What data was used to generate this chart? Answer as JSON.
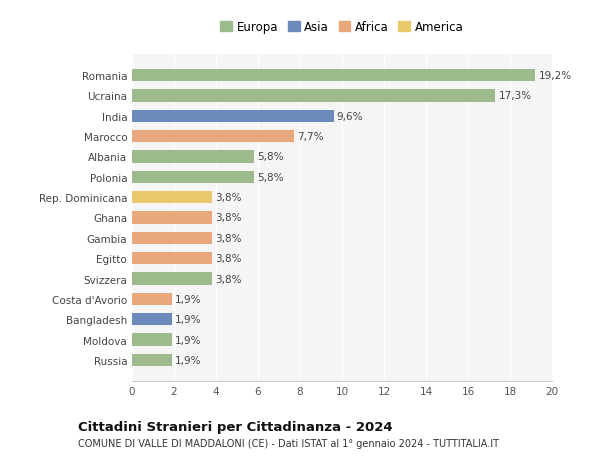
{
  "categories": [
    "Russia",
    "Moldova",
    "Bangladesh",
    "Costa d'Avorio",
    "Svizzera",
    "Egitto",
    "Gambia",
    "Ghana",
    "Rep. Dominicana",
    "Polonia",
    "Albania",
    "Marocco",
    "India",
    "Ucraina",
    "Romania"
  ],
  "values": [
    1.9,
    1.9,
    1.9,
    1.9,
    3.8,
    3.8,
    3.8,
    3.8,
    3.8,
    5.8,
    5.8,
    7.7,
    9.6,
    17.3,
    19.2
  ],
  "labels": [
    "1,9%",
    "1,9%",
    "1,9%",
    "1,9%",
    "3,8%",
    "3,8%",
    "3,8%",
    "3,8%",
    "3,8%",
    "5,8%",
    "5,8%",
    "7,7%",
    "9,6%",
    "17,3%",
    "19,2%"
  ],
  "colors": [
    "#9dba8d",
    "#9dba8d",
    "#6b8cba",
    "#e8a87c",
    "#9dba8d",
    "#e8a87c",
    "#e8a87c",
    "#e8a87c",
    "#e8c96e",
    "#9dba8d",
    "#9dba8d",
    "#e8a87c",
    "#6b8cba",
    "#9dba8d",
    "#9dba8d"
  ],
  "legend_labels": [
    "Europa",
    "Asia",
    "Africa",
    "America"
  ],
  "legend_colors": [
    "#9dba8d",
    "#6b8cba",
    "#e8a87c",
    "#e8c96e"
  ],
  "xlim": [
    0,
    20
  ],
  "xticks": [
    0,
    2,
    4,
    6,
    8,
    10,
    12,
    14,
    16,
    18,
    20
  ],
  "title": "Cittadini Stranieri per Cittadinanza - 2024",
  "subtitle": "COMUNE DI VALLE DI MADDALONI (CE) - Dati ISTAT al 1° gennaio 2024 - TUTTITALIA.IT",
  "background_color": "#ffffff",
  "plot_bg_color": "#f5f5f5",
  "grid_color": "#ffffff",
  "bar_height": 0.6,
  "label_fontsize": 7.5,
  "ytick_fontsize": 7.5,
  "xtick_fontsize": 7.5,
  "title_fontsize": 9.5,
  "subtitle_fontsize": 7.0,
  "legend_fontsize": 8.5
}
